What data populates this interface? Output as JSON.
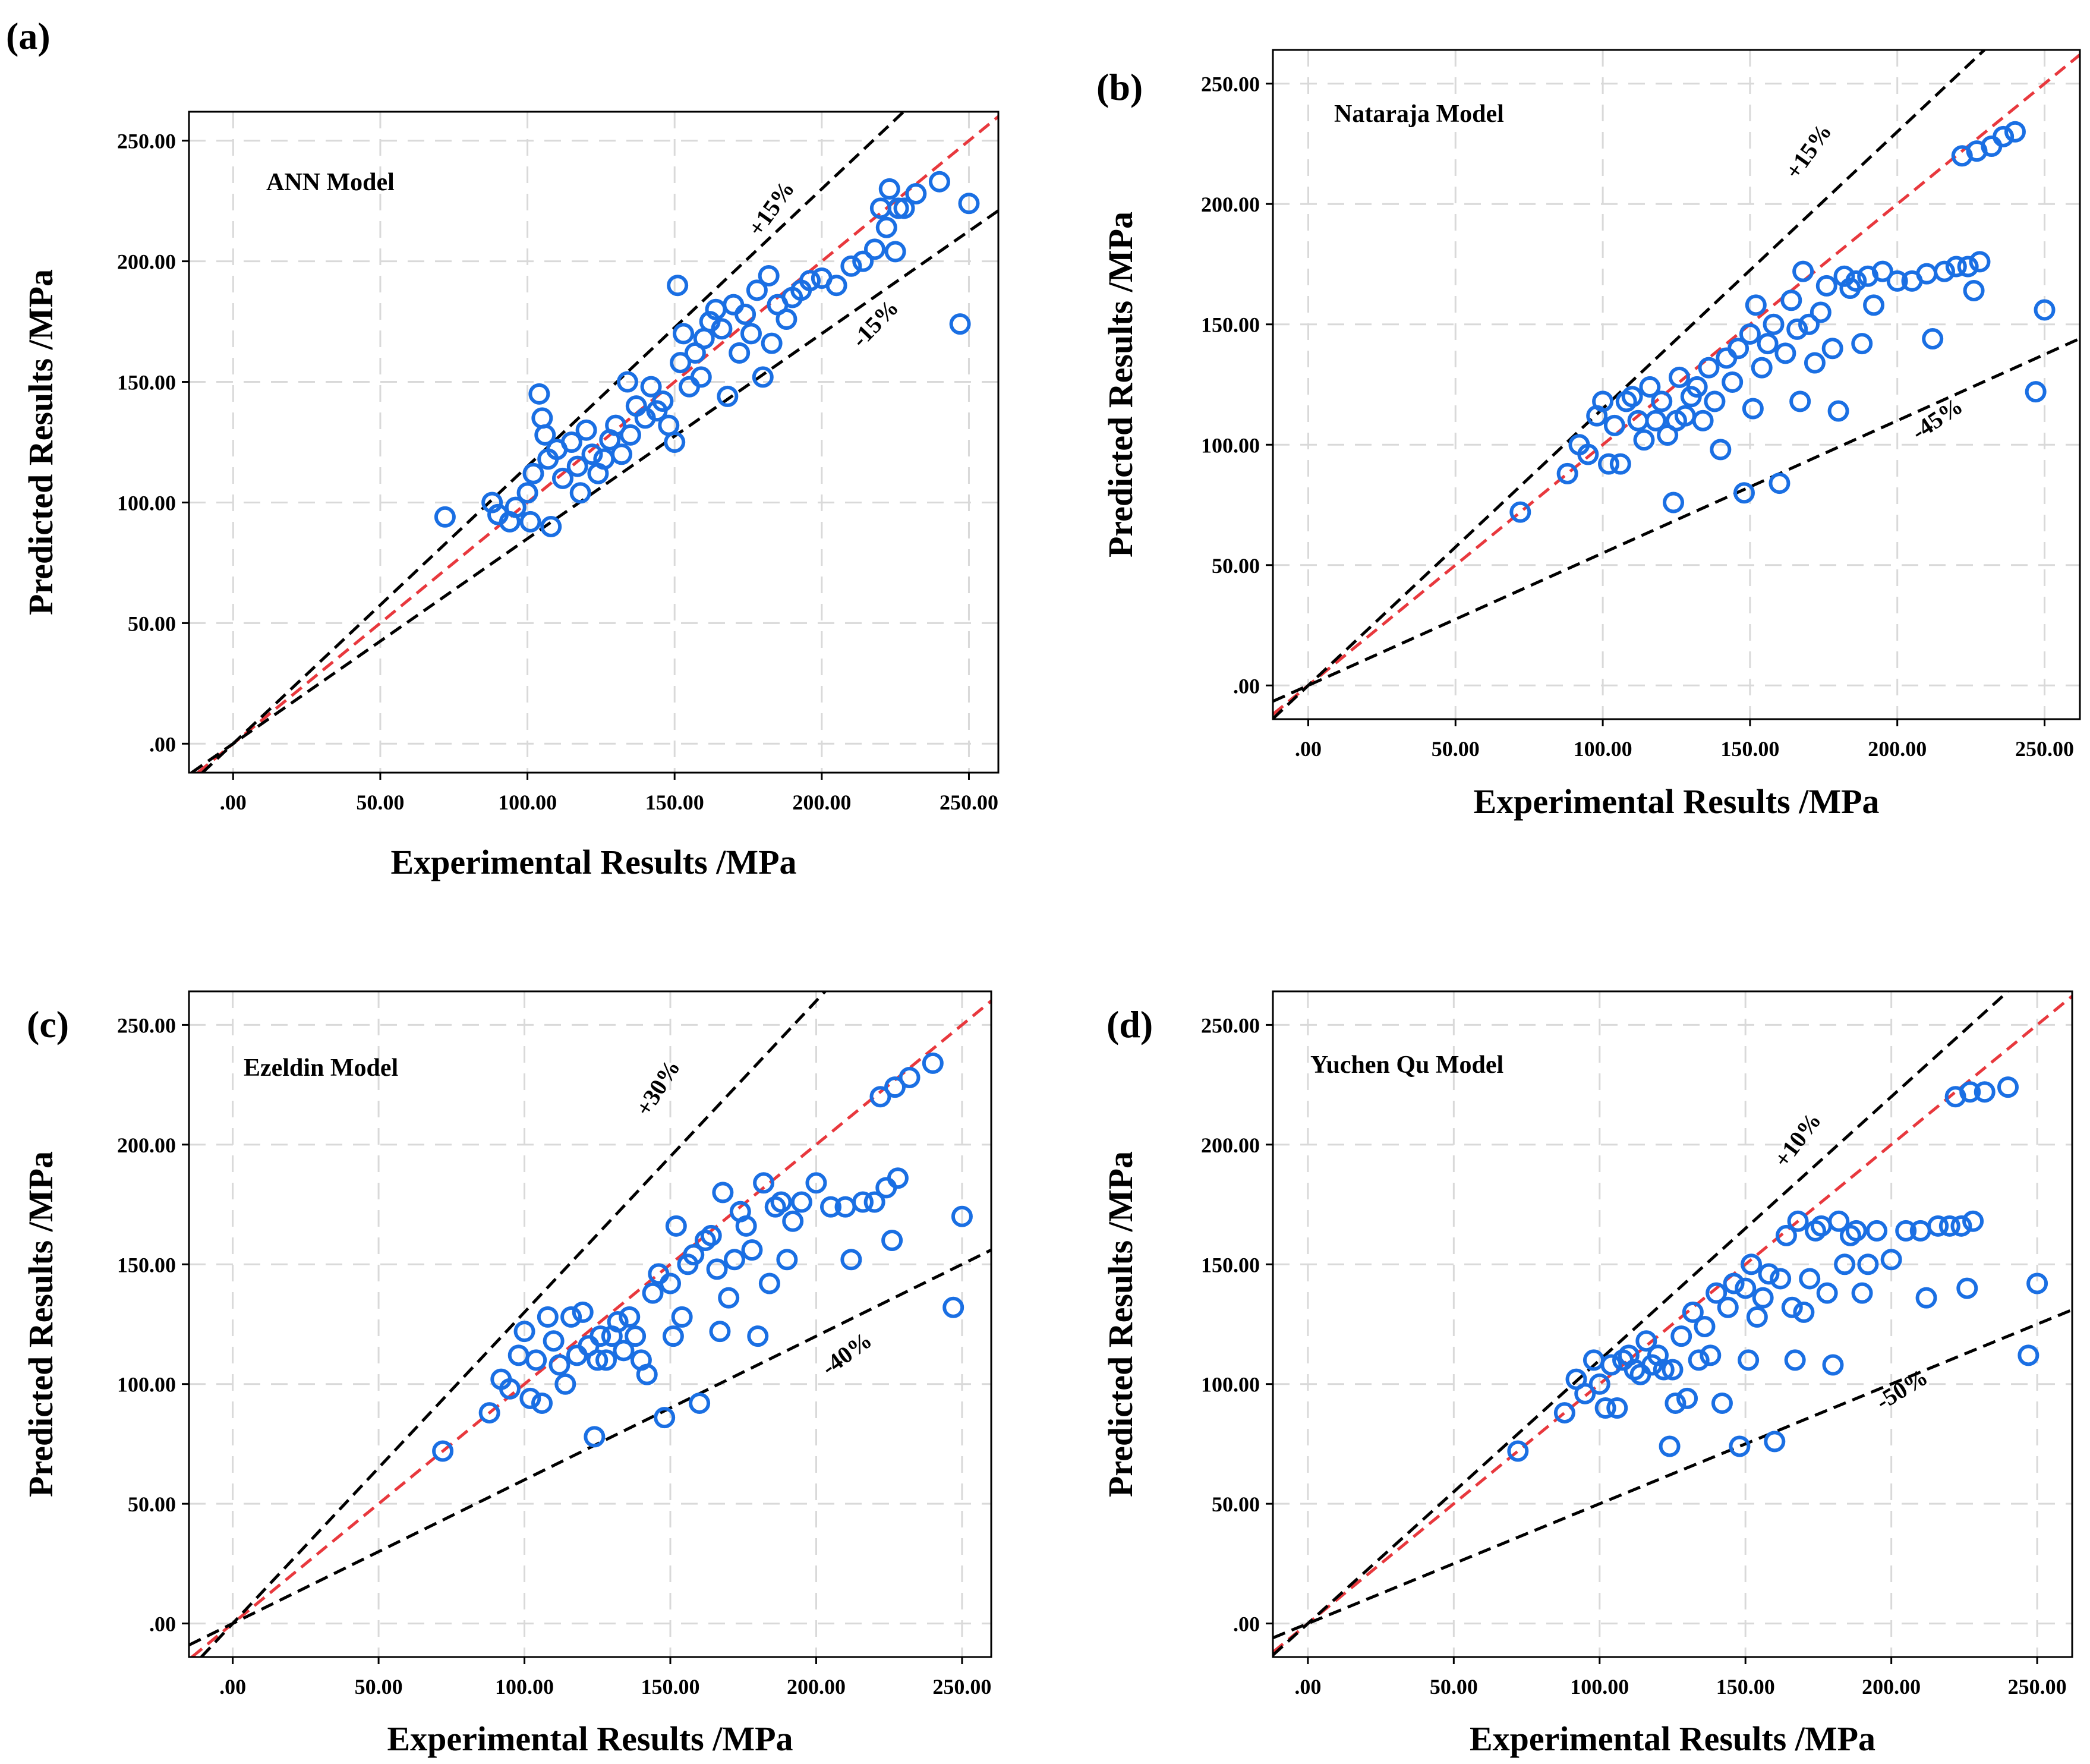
{
  "figure": {
    "colors": {
      "points": "#1a6fe3",
      "ideal_line": "#e8383d",
      "bound_lines": "#000000",
      "grid": "#d9d9d9"
    }
  },
  "chart_data": [
    {
      "type": "scatter",
      "panel_label": "(a)",
      "title": "ANN Model",
      "xlabel": "Experimental Results /MPa",
      "ylabel": "Predicted Results /MPa",
      "xlim": [
        -15,
        260
      ],
      "ylim": [
        -12,
        262
      ],
      "xticks": [
        0,
        50,
        100,
        150,
        200,
        250
      ],
      "xtick_labels": [
        ".00",
        "50.00",
        "100.00",
        "150.00",
        "200.00",
        "250.00"
      ],
      "yticks": [
        0,
        50,
        100,
        150,
        200,
        250
      ],
      "ytick_labels": [
        ".00",
        "50.00",
        "100.00",
        "150.00",
        "200.00",
        "250.00"
      ],
      "reference_lines": [
        {
          "label": "",
          "slope": 1.0,
          "style": "ideal"
        },
        {
          "label": "+15%",
          "slope": 1.15,
          "style": "bound",
          "label_at": [
            185,
            220
          ]
        },
        {
          "label": "-15%",
          "slope": 0.85,
          "style": "bound",
          "label_at": [
            220,
            172
          ]
        }
      ],
      "points": [
        [
          72,
          94
        ],
        [
          88,
          100
        ],
        [
          90,
          95
        ],
        [
          94,
          92
        ],
        [
          96,
          98
        ],
        [
          100,
          104
        ],
        [
          101,
          92
        ],
        [
          102,
          112
        ],
        [
          104,
          145
        ],
        [
          105,
          135
        ],
        [
          106,
          128
        ],
        [
          107,
          118
        ],
        [
          108,
          90
        ],
        [
          110,
          122
        ],
        [
          112,
          110
        ],
        [
          115,
          125
        ],
        [
          117,
          115
        ],
        [
          118,
          104
        ],
        [
          120,
          130
        ],
        [
          122,
          120
        ],
        [
          124,
          112
        ],
        [
          126,
          118
        ],
        [
          128,
          126
        ],
        [
          130,
          132
        ],
        [
          132,
          120
        ],
        [
          134,
          150
        ],
        [
          135,
          128
        ],
        [
          137,
          140
        ],
        [
          140,
          135
        ],
        [
          142,
          148
        ],
        [
          144,
          138
        ],
        [
          146,
          142
        ],
        [
          148,
          132
        ],
        [
          150,
          125
        ],
        [
          151,
          190
        ],
        [
          152,
          158
        ],
        [
          153,
          170
        ],
        [
          155,
          148
        ],
        [
          157,
          162
        ],
        [
          159,
          152
        ],
        [
          160,
          168
        ],
        [
          162,
          175
        ],
        [
          164,
          180
        ],
        [
          166,
          172
        ],
        [
          168,
          144
        ],
        [
          170,
          182
        ],
        [
          172,
          162
        ],
        [
          174,
          178
        ],
        [
          176,
          170
        ],
        [
          178,
          188
        ],
        [
          180,
          152
        ],
        [
          182,
          194
        ],
        [
          183,
          166
        ],
        [
          185,
          182
        ],
        [
          188,
          176
        ],
        [
          190,
          185
        ],
        [
          193,
          188
        ],
        [
          196,
          192
        ],
        [
          200,
          193
        ],
        [
          205,
          190
        ],
        [
          210,
          198
        ],
        [
          214,
          200
        ],
        [
          218,
          205
        ],
        [
          220,
          222
        ],
        [
          222,
          214
        ],
        [
          223,
          230
        ],
        [
          225,
          204
        ],
        [
          226,
          222
        ],
        [
          228,
          222
        ],
        [
          232,
          228
        ],
        [
          240,
          233
        ],
        [
          247,
          174
        ],
        [
          250,
          224
        ]
      ]
    },
    {
      "type": "scatter",
      "panel_label": "(b)",
      "title": "Nataraja Model",
      "xlabel": "Experimental Results /MPa",
      "ylabel": "Predicted Results /MPa",
      "xlim": [
        -12,
        262
      ],
      "ylim": [
        -14,
        264
      ],
      "xticks": [
        0,
        50,
        100,
        150,
        200,
        250
      ],
      "xtick_labels": [
        ".00",
        "50.00",
        "100.00",
        "150.00",
        "200.00",
        "250.00"
      ],
      "yticks": [
        0,
        50,
        100,
        150,
        200,
        250
      ],
      "ytick_labels": [
        ".00",
        "50.00",
        "100.00",
        "150.00",
        "200.00",
        "250.00"
      ],
      "reference_lines": [
        {
          "label": "",
          "slope": 1.0,
          "style": "ideal"
        },
        {
          "label": "+15%",
          "slope": 1.15,
          "style": "bound",
          "label_at": [
            172,
            220
          ]
        },
        {
          "label": "-45%",
          "slope": 0.55,
          "style": "bound",
          "label_at": [
            215,
            108
          ]
        }
      ],
      "points": [
        [
          72,
          72
        ],
        [
          88,
          88
        ],
        [
          92,
          100
        ],
        [
          95,
          96
        ],
        [
          98,
          112
        ],
        [
          100,
          118
        ],
        [
          102,
          92
        ],
        [
          104,
          108
        ],
        [
          106,
          92
        ],
        [
          108,
          118
        ],
        [
          110,
          120
        ],
        [
          112,
          110
        ],
        [
          114,
          102
        ],
        [
          116,
          124
        ],
        [
          118,
          110
        ],
        [
          120,
          118
        ],
        [
          122,
          104
        ],
        [
          124,
          76
        ],
        [
          125,
          110
        ],
        [
          126,
          128
        ],
        [
          128,
          112
        ],
        [
          130,
          120
        ],
        [
          132,
          124
        ],
        [
          134,
          110
        ],
        [
          136,
          132
        ],
        [
          138,
          118
        ],
        [
          140,
          98
        ],
        [
          142,
          136
        ],
        [
          144,
          126
        ],
        [
          146,
          140
        ],
        [
          148,
          80
        ],
        [
          150,
          146
        ],
        [
          151,
          115
        ],
        [
          152,
          158
        ],
        [
          154,
          132
        ],
        [
          156,
          142
        ],
        [
          158,
          150
        ],
        [
          160,
          84
        ],
        [
          162,
          138
        ],
        [
          164,
          160
        ],
        [
          166,
          148
        ],
        [
          167,
          118
        ],
        [
          168,
          172
        ],
        [
          170,
          150
        ],
        [
          172,
          134
        ],
        [
          174,
          155
        ],
        [
          176,
          166
        ],
        [
          178,
          140
        ],
        [
          180,
          114
        ],
        [
          182,
          170
        ],
        [
          184,
          165
        ],
        [
          186,
          168
        ],
        [
          188,
          142
        ],
        [
          190,
          170
        ],
        [
          192,
          158
        ],
        [
          195,
          172
        ],
        [
          200,
          168
        ],
        [
          205,
          168
        ],
        [
          210,
          171
        ],
        [
          212,
          144
        ],
        [
          216,
          172
        ],
        [
          220,
          174
        ],
        [
          222,
          220
        ],
        [
          224,
          174
        ],
        [
          226,
          164
        ],
        [
          227,
          222
        ],
        [
          228,
          176
        ],
        [
          232,
          224
        ],
        [
          236,
          228
        ],
        [
          240,
          230
        ],
        [
          247,
          122
        ],
        [
          250,
          156
        ]
      ]
    },
    {
      "type": "scatter",
      "panel_label": "(c)",
      "title": "Ezeldin Model",
      "xlabel": "Experimental Results /MPa",
      "ylabel": "Predicted Results /MPa",
      "xlim": [
        -15,
        260
      ],
      "ylim": [
        -14,
        264
      ],
      "xticks": [
        0,
        50,
        100,
        150,
        200,
        250
      ],
      "xtick_labels": [
        ".00",
        "50.00",
        "100.00",
        "150.00",
        "200.00",
        "250.00"
      ],
      "yticks": [
        0,
        50,
        100,
        150,
        200,
        250
      ],
      "ytick_labels": [
        ".00",
        "50.00",
        "100.00",
        "150.00",
        "200.00",
        "250.00"
      ],
      "reference_lines": [
        {
          "label": "",
          "slope": 1.0,
          "style": "ideal"
        },
        {
          "label": "+30%",
          "slope": 1.3,
          "style": "bound",
          "label_at": [
            148,
            222
          ]
        },
        {
          "label": "-40%",
          "slope": 0.6,
          "style": "bound",
          "label_at": [
            212,
            110
          ]
        }
      ],
      "points": [
        [
          72,
          72
        ],
        [
          88,
          88
        ],
        [
          92,
          102
        ],
        [
          95,
          98
        ],
        [
          98,
          112
        ],
        [
          100,
          122
        ],
        [
          102,
          94
        ],
        [
          104,
          110
        ],
        [
          106,
          92
        ],
        [
          108,
          128
        ],
        [
          110,
          118
        ],
        [
          112,
          108
        ],
        [
          114,
          100
        ],
        [
          116,
          128
        ],
        [
          118,
          112
        ],
        [
          120,
          130
        ],
        [
          122,
          116
        ],
        [
          124,
          78
        ],
        [
          125,
          110
        ],
        [
          126,
          120
        ],
        [
          128,
          110
        ],
        [
          130,
          120
        ],
        [
          132,
          126
        ],
        [
          134,
          114
        ],
        [
          136,
          128
        ],
        [
          138,
          120
        ],
        [
          140,
          110
        ],
        [
          142,
          104
        ],
        [
          144,
          138
        ],
        [
          146,
          146
        ],
        [
          148,
          86
        ],
        [
          150,
          142
        ],
        [
          151,
          120
        ],
        [
          152,
          166
        ],
        [
          154,
          128
        ],
        [
          156,
          150
        ],
        [
          158,
          154
        ],
        [
          160,
          92
        ],
        [
          162,
          160
        ],
        [
          164,
          162
        ],
        [
          166,
          148
        ],
        [
          167,
          122
        ],
        [
          168,
          180
        ],
        [
          170,
          136
        ],
        [
          172,
          152
        ],
        [
          174,
          172
        ],
        [
          176,
          166
        ],
        [
          178,
          156
        ],
        [
          180,
          120
        ],
        [
          182,
          184
        ],
        [
          184,
          142
        ],
        [
          186,
          174
        ],
        [
          188,
          176
        ],
        [
          190,
          152
        ],
        [
          192,
          168
        ],
        [
          195,
          176
        ],
        [
          200,
          184
        ],
        [
          205,
          174
        ],
        [
          210,
          174
        ],
        [
          212,
          152
        ],
        [
          216,
          176
        ],
        [
          220,
          176
        ],
        [
          222,
          220
        ],
        [
          224,
          182
        ],
        [
          226,
          160
        ],
        [
          227,
          224
        ],
        [
          228,
          186
        ],
        [
          232,
          228
        ],
        [
          240,
          234
        ],
        [
          247,
          132
        ],
        [
          250,
          170
        ]
      ]
    },
    {
      "type": "scatter",
      "panel_label": "(d)",
      "title": "Yuchen Qu Model",
      "xlabel": "Experimental Results /MPa",
      "ylabel": "Predicted Results /MPa",
      "xlim": [
        -12,
        262
      ],
      "ylim": [
        -14,
        264
      ],
      "xticks": [
        0,
        50,
        100,
        150,
        200,
        250
      ],
      "xtick_labels": [
        ".00",
        "50.00",
        "100.00",
        "150.00",
        "200.00",
        "250.00"
      ],
      "yticks": [
        0,
        50,
        100,
        150,
        200,
        250
      ],
      "ytick_labels": [
        ".00",
        "50.00",
        "100.00",
        "150.00",
        "200.00",
        "250.00"
      ],
      "reference_lines": [
        {
          "label": "",
          "slope": 1.0,
          "style": "ideal"
        },
        {
          "label": "+10%",
          "slope": 1.1,
          "style": "bound",
          "label_at": [
            170,
            200
          ]
        },
        {
          "label": "-50%",
          "slope": 0.5,
          "style": "bound",
          "label_at": [
            205,
            95
          ]
        }
      ],
      "points": [
        [
          72,
          72
        ],
        [
          88,
          88
        ],
        [
          92,
          102
        ],
        [
          95,
          96
        ],
        [
          98,
          110
        ],
        [
          100,
          100
        ],
        [
          102,
          90
        ],
        [
          104,
          108
        ],
        [
          106,
          90
        ],
        [
          108,
          110
        ],
        [
          110,
          112
        ],
        [
          112,
          106
        ],
        [
          114,
          104
        ],
        [
          116,
          118
        ],
        [
          118,
          108
        ],
        [
          120,
          112
        ],
        [
          122,
          106
        ],
        [
          124,
          74
        ],
        [
          125,
          106
        ],
        [
          126,
          92
        ],
        [
          128,
          120
        ],
        [
          130,
          94
        ],
        [
          132,
          130
        ],
        [
          134,
          110
        ],
        [
          136,
          124
        ],
        [
          138,
          112
        ],
        [
          140,
          138
        ],
        [
          142,
          92
        ],
        [
          144,
          132
        ],
        [
          146,
          142
        ],
        [
          148,
          74
        ],
        [
          150,
          140
        ],
        [
          151,
          110
        ],
        [
          152,
          150
        ],
        [
          154,
          128
        ],
        [
          156,
          136
        ],
        [
          158,
          146
        ],
        [
          160,
          76
        ],
        [
          162,
          144
        ],
        [
          164,
          162
        ],
        [
          166,
          132
        ],
        [
          167,
          110
        ],
        [
          168,
          168
        ],
        [
          170,
          130
        ],
        [
          172,
          144
        ],
        [
          174,
          164
        ],
        [
          176,
          166
        ],
        [
          178,
          138
        ],
        [
          180,
          108
        ],
        [
          182,
          168
        ],
        [
          184,
          150
        ],
        [
          186,
          162
        ],
        [
          188,
          164
        ],
        [
          190,
          138
        ],
        [
          192,
          150
        ],
        [
          195,
          164
        ],
        [
          200,
          152
        ],
        [
          205,
          164
        ],
        [
          210,
          164
        ],
        [
          212,
          136
        ],
        [
          216,
          166
        ],
        [
          220,
          166
        ],
        [
          222,
          220
        ],
        [
          224,
          166
        ],
        [
          226,
          140
        ],
        [
          227,
          222
        ],
        [
          228,
          168
        ],
        [
          232,
          222
        ],
        [
          240,
          224
        ],
        [
          247,
          112
        ],
        [
          250,
          142
        ]
      ]
    }
  ]
}
